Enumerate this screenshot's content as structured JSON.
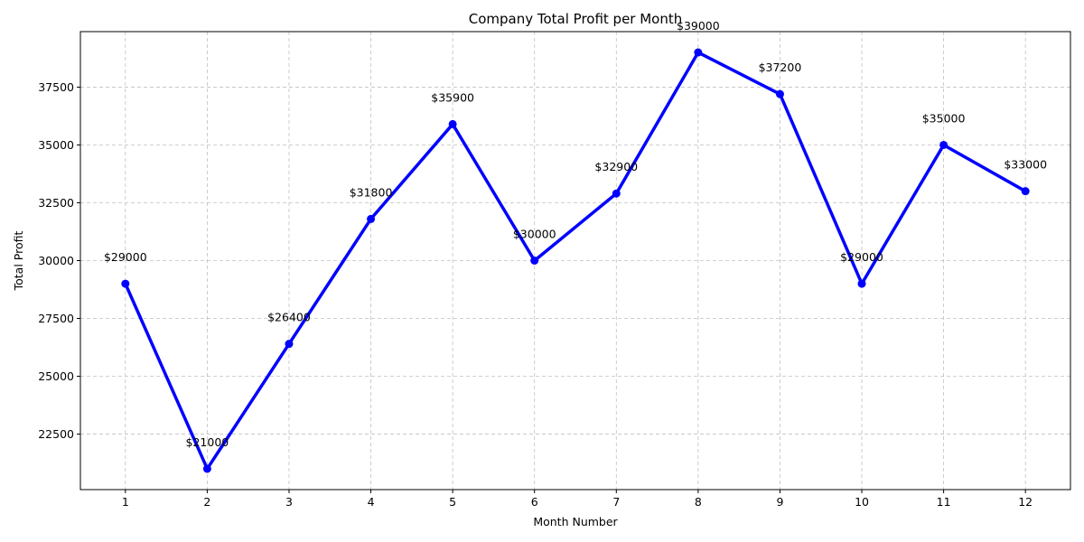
{
  "chart_data": {
    "type": "line",
    "title": "Company Total Profit per Month",
    "xlabel": "Month Number",
    "ylabel": "Total Profit",
    "x": [
      1,
      2,
      3,
      4,
      5,
      6,
      7,
      8,
      9,
      10,
      11,
      12
    ],
    "series": [
      {
        "values": [
          29000,
          21000,
          26400,
          31800,
          35900,
          30000,
          32900,
          39000,
          37200,
          29000,
          35000,
          33000
        ],
        "color": "#0000ff",
        "marker": "circle"
      }
    ],
    "data_labels": [
      "$29000",
      "$21000",
      "$26400",
      "$31800",
      "$35900",
      "$30000",
      "$32900",
      "$39000",
      "$37200",
      "$29000",
      "$35000",
      "$33000"
    ],
    "xticks": [
      "1",
      "2",
      "3",
      "4",
      "5",
      "6",
      "7",
      "8",
      "9",
      "10",
      "11",
      "12"
    ],
    "yticks": [
      22500,
      25000,
      27500,
      30000,
      32500,
      35000,
      37500
    ],
    "ytick_labels": [
      "22500",
      "25000",
      "27500",
      "30000",
      "32500",
      "35000",
      "37500"
    ],
    "xlim": [
      0.45,
      12.55
    ],
    "ylim": [
      20100,
      39900
    ],
    "grid": true
  }
}
